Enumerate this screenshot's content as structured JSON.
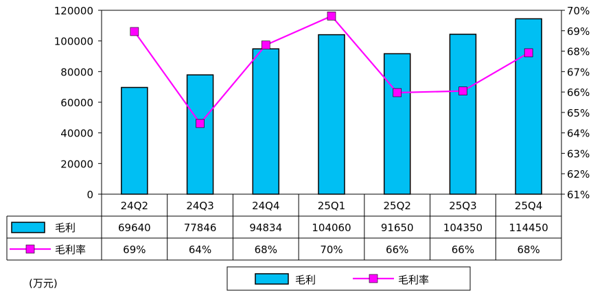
{
  "chart_data": {
    "type": "bar+line",
    "categories": [
      "24Q2",
      "24Q3",
      "24Q4",
      "25Q1",
      "25Q2",
      "25Q3",
      "25Q4"
    ],
    "series": [
      {
        "name": "毛利",
        "type": "bar",
        "axis": "left",
        "values": [
          69640,
          77846,
          94834,
          104060,
          91650,
          104350,
          114450
        ],
        "color": "#00BFF3"
      },
      {
        "name": "毛利率",
        "type": "line",
        "axis": "right",
        "values": [
          68.96,
          64.46,
          68.3,
          69.72,
          65.97,
          66.05,
          67.92
        ],
        "color": "#FF00FF"
      }
    ],
    "table_values": {
      "gross_profit": [
        "69640",
        "77846",
        "94834",
        "104060",
        "91650",
        "104350",
        "114450"
      ],
      "gross_margin": [
        "69%",
        "64%",
        "68%",
        "70%",
        "66%",
        "66%",
        "68%"
      ]
    },
    "left_axis": {
      "min": 0,
      "max": 120000,
      "step": 20000,
      "ticks": [
        "0",
        "20000",
        "40000",
        "60000",
        "80000",
        "100000",
        "120000"
      ]
    },
    "right_axis": {
      "min": 61,
      "max": 70,
      "step": 1,
      "ticks": [
        "61%",
        "62%",
        "63%",
        "64%",
        "65%",
        "66%",
        "67%",
        "68%",
        "69%",
        "70%"
      ]
    },
    "unit_label": "(万元)",
    "legend": {
      "placement": "bottom",
      "items": [
        "毛利",
        "毛利率"
      ]
    },
    "grid": false
  }
}
